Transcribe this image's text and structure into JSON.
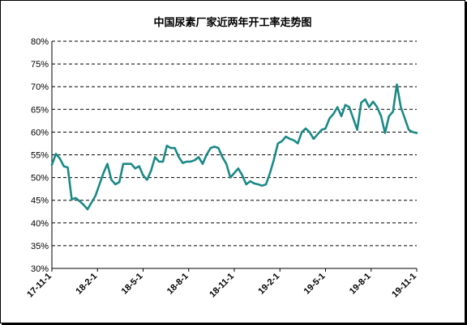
{
  "chart_data": {
    "type": "line",
    "title": "中国尿素厂家近两年开工率走势图",
    "xlabel": "",
    "ylabel": "",
    "ylim": [
      30,
      80
    ],
    "y_ticks": [
      "30%",
      "35%",
      "40%",
      "45%",
      "50%",
      "55%",
      "60%",
      "65%",
      "70%",
      "75%",
      "80%"
    ],
    "x_ticks": [
      "17-11-1",
      "18-2-1",
      "18-5-1",
      "18-8-1",
      "18-11-1",
      "19-2-1",
      "19-5-1",
      "19-8-1",
      "19-11-1"
    ],
    "grid": "horizontal dashed",
    "line_color": "#1a8a86",
    "series": [
      {
        "values": [
          52.8,
          55.2,
          54.2,
          52.5,
          52.2,
          45.2,
          45.5,
          44.8,
          44,
          43,
          44.5,
          46,
          48.5,
          51,
          53,
          49.5,
          48.5,
          49,
          53,
          53,
          53,
          52,
          52.5,
          50.5,
          49.5,
          51.5,
          54.5,
          53.5,
          53.5,
          57,
          56.5,
          56.5,
          54.5,
          53.2,
          53.5,
          53.5,
          53.8,
          54.5,
          53,
          55,
          56.5,
          56.8,
          56.5,
          54.5,
          53,
          50,
          51,
          52,
          50.5,
          48.5,
          49.2,
          48.7,
          48.5,
          48.2,
          48.5,
          51,
          54,
          57.5,
          58,
          59,
          58.5,
          58.2,
          57.5,
          60,
          60.8,
          60,
          58.5,
          59.5,
          60.5,
          60.8,
          63,
          64,
          65.5,
          63.5,
          66,
          65.5,
          63,
          60.5,
          66.5,
          67.2,
          65.5,
          66.7,
          65.5,
          63.5,
          59.8,
          63.5,
          64.5,
          70.5,
          65.5,
          63,
          60.5,
          60,
          59.8
        ]
      }
    ]
  }
}
